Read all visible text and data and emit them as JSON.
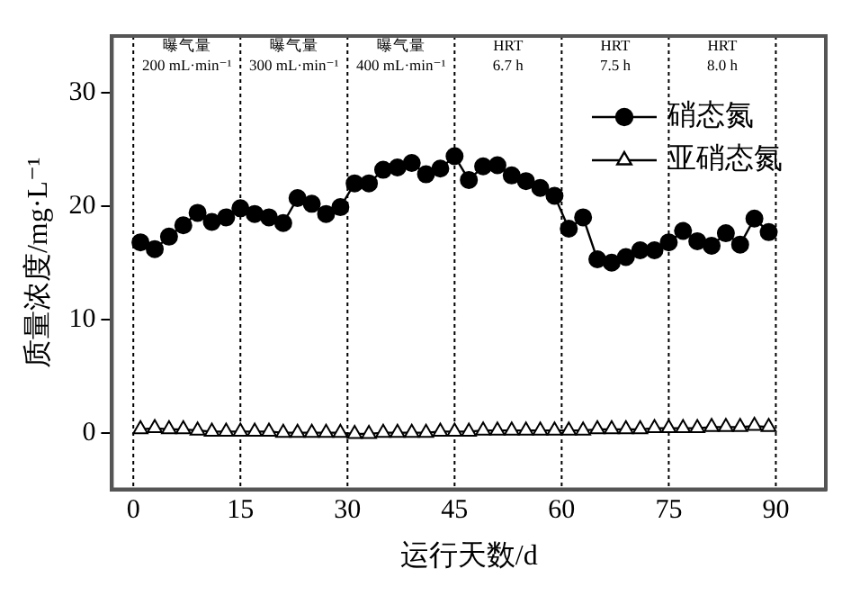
{
  "chart_data": {
    "type": "line",
    "xlabel": "运行天数/d",
    "ylabel": "质量浓度/mg·L⁻¹",
    "xlim": [
      -3,
      97
    ],
    "xticks": [
      0,
      15,
      30,
      45,
      60,
      75,
      90
    ],
    "ylim": [
      -5,
      35
    ],
    "yticks": [
      0,
      10,
      20,
      30
    ],
    "grid": false,
    "legend": "top right",
    "line_style": "solid",
    "series": [
      {
        "name": "硝态氮",
        "color": "#000000",
        "marker": "circle",
        "x": [
          1,
          3,
          5,
          7,
          9,
          11,
          13,
          15,
          17,
          19,
          21,
          23,
          25,
          27,
          29,
          31,
          33,
          35,
          37,
          39,
          41,
          43,
          45,
          47,
          49,
          51,
          53,
          55,
          57,
          59,
          61,
          63,
          65,
          67,
          69,
          71,
          73,
          75,
          77,
          79,
          81,
          83,
          85,
          87,
          89
        ],
        "values": [
          16.8,
          16.2,
          17.3,
          18.3,
          19.4,
          18.6,
          19,
          19.8,
          19.3,
          19,
          18.5,
          20.7,
          20.2,
          19.3,
          19.9,
          22,
          22,
          23.2,
          23.4,
          23.8,
          22.8,
          23.3,
          24.4,
          22.3,
          23.5,
          23.6,
          22.7,
          22.2,
          21.6,
          20.9,
          18,
          19,
          15.3,
          15,
          15.5,
          16.1,
          16.1,
          16.8,
          17.8,
          16.9,
          16.5,
          17.6,
          16.6,
          18.9,
          17.7
        ]
      },
      {
        "name": "亚硝态氮",
        "color": "#000000",
        "marker": "triangle",
        "x": [
          1,
          3,
          5,
          7,
          9,
          11,
          13,
          15,
          17,
          19,
          21,
          23,
          25,
          27,
          29,
          31,
          33,
          35,
          37,
          39,
          41,
          43,
          45,
          47,
          49,
          51,
          53,
          55,
          57,
          59,
          61,
          63,
          65,
          67,
          69,
          71,
          73,
          75,
          77,
          79,
          81,
          83,
          85,
          87,
          89
        ],
        "values": [
          0.3,
          0.4,
          0.3,
          0.3,
          0.2,
          0.1,
          0.1,
          0.1,
          0.1,
          0.1,
          0.0,
          0.0,
          0.0,
          0.0,
          0.0,
          -0.1,
          -0.1,
          0.0,
          0.0,
          0.0,
          0.0,
          0.1,
          0.1,
          0.1,
          0.2,
          0.2,
          0.2,
          0.2,
          0.2,
          0.2,
          0.2,
          0.2,
          0.3,
          0.3,
          0.3,
          0.3,
          0.4,
          0.4,
          0.4,
          0.4,
          0.5,
          0.5,
          0.5,
          0.6,
          0.5
        ]
      }
    ],
    "ref_lines": [
      {
        "axis": "x",
        "value": 0,
        "line_style": "dotted"
      },
      {
        "axis": "x",
        "value": 15,
        "line_style": "dotted"
      },
      {
        "axis": "x",
        "value": 30,
        "line_style": "dotted"
      },
      {
        "axis": "x",
        "value": 45,
        "line_style": "dotted"
      },
      {
        "axis": "x",
        "value": 60,
        "line_style": "dotted"
      },
      {
        "axis": "x",
        "value": 75,
        "line_style": "dotted"
      },
      {
        "axis": "x",
        "value": 90,
        "line_style": "dotted"
      }
    ],
    "annotations": [
      "曝气量\n200 mL·min⁻¹",
      "曝气量\n300 mL·min⁻¹",
      "曝气量\n400 mL·min⁻¹",
      "HRT\n6.7 h",
      "HRT\n7.5 h",
      "HRT\n8.0 h"
    ]
  }
}
